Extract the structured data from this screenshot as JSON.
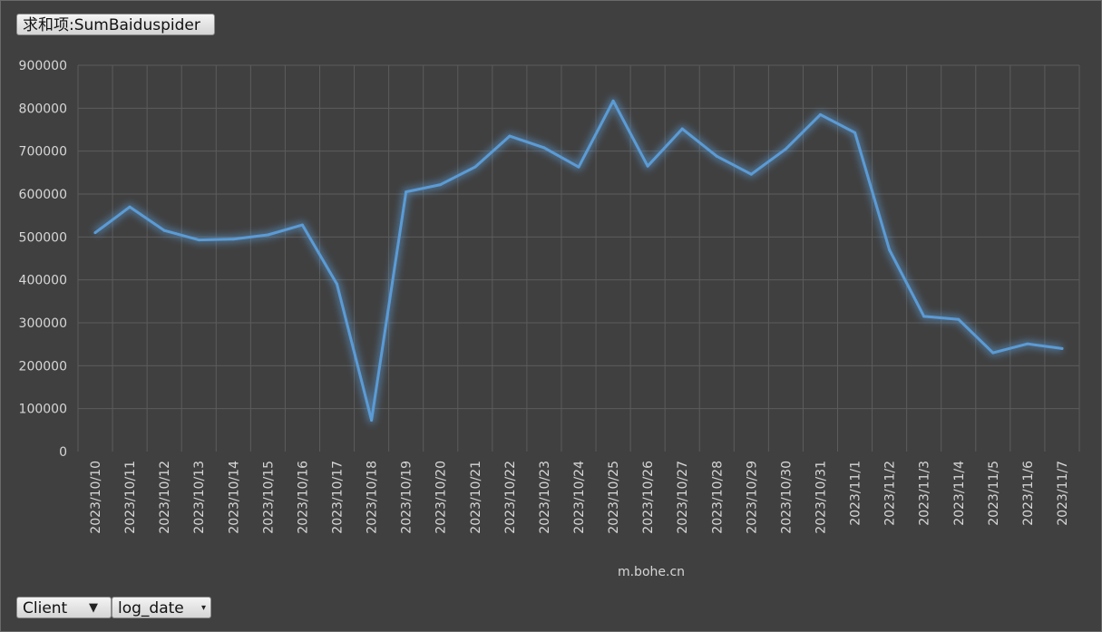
{
  "value_field": {
    "label": "求和项:SumBaiduspider"
  },
  "axis_fields": {
    "client": {
      "label": "Client",
      "icon": "filter-icon"
    },
    "log_date": {
      "label": "log_date",
      "icon": "dropdown-arrow-icon"
    }
  },
  "colors": {
    "background": "#404040",
    "line": "#5b9bd5",
    "grid": "#5c5c5c",
    "text": "#d6d6d6"
  },
  "chart_data": {
    "type": "line",
    "title": "",
    "xlabel": "m.bohe.cn",
    "ylabel": "",
    "ylim": [
      0,
      900000
    ],
    "yticks": [
      "0",
      "100000",
      "200000",
      "300000",
      "400000",
      "500000",
      "600000",
      "700000",
      "800000",
      "900000"
    ],
    "categories": [
      "2023/10/10",
      "2023/10/11",
      "2023/10/12",
      "2023/10/13",
      "2023/10/14",
      "2023/10/15",
      "2023/10/16",
      "2023/10/17",
      "2023/10/18",
      "2023/10/19",
      "2023/10/20",
      "2023/10/21",
      "2023/10/22",
      "2023/10/23",
      "2023/10/24",
      "2023/10/25",
      "2023/10/26",
      "2023/10/27",
      "2023/10/28",
      "2023/10/29",
      "2023/10/30",
      "2023/10/31",
      "2023/11/1",
      "2023/11/2",
      "2023/11/3",
      "2023/11/4",
      "2023/11/5",
      "2023/11/6",
      "2023/11/7"
    ],
    "series": [
      {
        "values": [
          510000,
          570000,
          515000,
          493000,
          495000,
          505000,
          528000,
          390000,
          73000,
          605000,
          622000,
          663000,
          735000,
          708000,
          663000,
          817000,
          665000,
          752000,
          688000,
          646000,
          705000,
          785000,
          743000,
          470000,
          315000,
          308000,
          230000,
          251000,
          240000
        ]
      }
    ],
    "grid": true,
    "legend": "none"
  }
}
